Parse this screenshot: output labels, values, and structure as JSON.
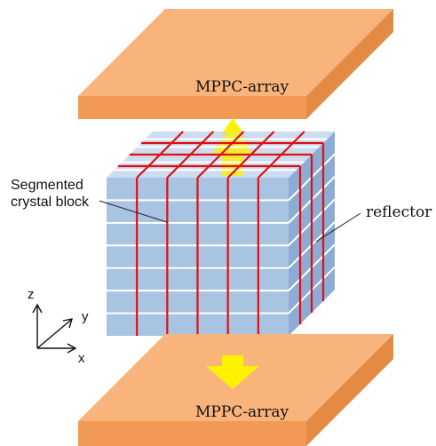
{
  "labels": {
    "top_array": "MPPC-array",
    "bottom_array": "MPPC-array",
    "crystal_line1": "Segmented",
    "crystal_line2": "crystal block",
    "reflector": "reflector"
  },
  "axes": {
    "z": "z",
    "y": "y",
    "x": "x"
  },
  "colors": {
    "plate_top": "#f8b47a",
    "plate_front": "#f29a55",
    "plate_side": "#e38a45",
    "cube_front": "#a9c3e3",
    "cube_top": "#c3d6ee",
    "cube_side": "#8eabd3",
    "reflector_red": "#e01010",
    "reflector_white": "#ffffff",
    "arrow_yellow": "#fff200"
  },
  "icons": {
    "photon_arrow_up": "arrow-up-icon",
    "photon_arrow_down": "arrow-down-icon"
  }
}
